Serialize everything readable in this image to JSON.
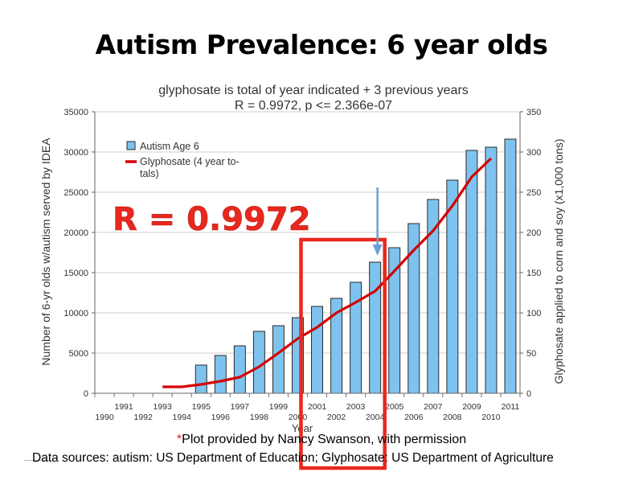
{
  "slide_title": "Autism Prevalence: 6 year olds",
  "footnotes": {
    "star": "*",
    "credit": "Plot provided by Nancy Swanson, with permission",
    "sources": "Data sources: autism: US Department of Education; Glyphosate: US Department of Agriculture"
  },
  "callout": {
    "text": "R = 0.9972"
  },
  "colors": {
    "bar": "#7ec3ef",
    "bar_stroke": "#2a2a2a",
    "line": "#d40000",
    "highlight": "#e8281e",
    "arrow": "#6a9fd4"
  },
  "chart_data": {
    "type": "bar",
    "title": "glyphosate is total of year indicated + 3 previous years",
    "subtitle": "R = 0.9972, p <= 2.366e-07",
    "xlabel": "Year",
    "ylabel": "Number of 6-yr olds w/autism served by IDEA",
    "y2label": "Glyphosate applied to corn and soy (x1,000 tons)",
    "ylim": [
      0,
      35000
    ],
    "y2lim": [
      0,
      350
    ],
    "y_ticks": [
      "0",
      "5000",
      "10000",
      "15000",
      "20000",
      "25000",
      "30000",
      "35000"
    ],
    "y2_ticks": [
      "0",
      "50",
      "100",
      "150",
      "200",
      "250",
      "300",
      "350"
    ],
    "categories": [
      "1990",
      "1991",
      "1992",
      "1993",
      "1994",
      "1995",
      "1996",
      "1997",
      "1998",
      "1999",
      "2000",
      "2001",
      "2002",
      "2003",
      "2004",
      "2005",
      "2006",
      "2007",
      "2008",
      "2009",
      "2010",
      "2011"
    ],
    "legend_position": "top-left",
    "grid": "horizontal",
    "series": [
      {
        "name": "Autism Age 6",
        "type": "bar",
        "axis": "left",
        "values": [
          null,
          null,
          null,
          null,
          null,
          3500,
          4700,
          5900,
          7700,
          8400,
          9400,
          10800,
          11800,
          13800,
          16300,
          18100,
          21100,
          24100,
          26500,
          30200,
          30600,
          31600
        ]
      },
      {
        "name": "Glyphosate (4 year to-tals)",
        "legend_lines": [
          "Glyphosate (4 year to-",
          "tals)"
        ],
        "type": "line",
        "axis": "right",
        "values": [
          null,
          null,
          null,
          8,
          8,
          11,
          15,
          20,
          33,
          50,
          68,
          82,
          100,
          113,
          127,
          152,
          178,
          202,
          233,
          269,
          292,
          null
        ]
      }
    ],
    "annotations": [
      {
        "type": "highlight-box",
        "from": "2001",
        "to": "2004"
      },
      {
        "type": "arrow",
        "points_to": "2004"
      }
    ]
  }
}
